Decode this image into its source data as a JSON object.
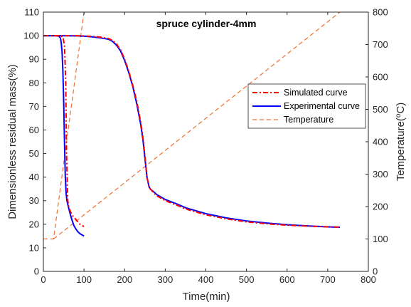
{
  "chart_data": {
    "type": "line",
    "title": "spruce cylinder-4mm",
    "xlabel": "Time(min)",
    "ylabel": "Dimensionless residual mass(%)",
    "y2label": "Temperature(°C)",
    "y2label_parts": {
      "base": "Temperature(",
      "sup": "o",
      "rest": "C)"
    },
    "xlim": [
      0,
      800
    ],
    "ylim": [
      0,
      110
    ],
    "y2lim": [
      0,
      800
    ],
    "xticks": [
      "0",
      "100",
      "200",
      "300",
      "400",
      "500",
      "600",
      "700",
      "800"
    ],
    "yticks": [
      "0",
      "10",
      "20",
      "30",
      "40",
      "50",
      "60",
      "70",
      "80",
      "90",
      "100",
      "110"
    ],
    "y2ticks": [
      "0",
      "100",
      "200",
      "300",
      "400",
      "500",
      "600",
      "700",
      "800"
    ],
    "grid": false,
    "legend_position": "center-right",
    "series": [
      {
        "name": "Simulated curve",
        "color": "#ff0000",
        "style": "dash-dot",
        "axis": "left",
        "segments": [
          {
            "x": [
              0,
              40,
              48,
              52,
              55,
              57,
              60,
              63,
              70,
              80,
              90,
              100
            ],
            "y": [
              100,
              100,
              99.5,
              96,
              80,
              50,
              30,
              27,
              24,
              22,
              20,
              19
            ]
          },
          {
            "x": [
              0,
              40,
              80,
              100,
              120,
              140,
              160,
              170,
              180,
              190,
              200,
              210,
              220,
              230,
              240,
              245,
              250,
              255,
              260,
              263,
              266,
              270,
              280,
              300,
              330,
              350,
              400,
              450,
              500,
              550,
              600,
              650,
              700,
              730
            ],
            "y": [
              100,
              100,
              100,
              99.9,
              99.7,
              99.4,
              98.8,
              98,
              96.5,
              94,
              90,
              85,
              79,
              72,
              63,
              57,
              49,
              40,
              36,
              35,
              34.5,
              33.5,
              32,
              30,
              28,
              26.5,
              24,
              22.3,
              21,
              20.2,
              19.6,
              19.2,
              18.9,
              18.8
            ]
          }
        ]
      },
      {
        "name": "Experimental curve",
        "color": "#0000ff",
        "style": "solid",
        "axis": "left",
        "segments": [
          {
            "x": [
              0,
              30,
              38,
              42,
              44,
              46,
              48,
              50,
              52,
              54,
              56,
              58,
              60,
              65,
              70,
              75,
              80,
              85,
              90,
              95,
              100
            ],
            "y": [
              100,
              100,
              99.8,
              99,
              97,
              93,
              85,
              72,
              55,
              40,
              33,
              30,
              28.5,
              25,
              22,
              19.5,
              18,
              16.8,
              16,
              15.5,
              15
            ]
          },
          {
            "x": [
              0,
              40,
              80,
              100,
              120,
              140,
              160,
              170,
              180,
              190,
              200,
              210,
              220,
              230,
              240,
              245,
              250,
              255,
              260,
              263,
              266,
              270,
              280,
              300,
              330,
              350,
              400,
              450,
              500,
              550,
              600,
              650,
              700,
              730
            ],
            "y": [
              100,
              100,
              99.9,
              99.8,
              99.5,
              99.1,
              98.5,
              97.6,
              96,
              93.5,
              89.5,
              84.5,
              78.5,
              71,
              62,
              56,
              48,
              40,
              36,
              35,
              34.5,
              34,
              32.5,
              30.5,
              28.5,
              27,
              24.5,
              22.7,
              21.4,
              20.5,
              19.8,
              19.3,
              18.9,
              18.7
            ]
          }
        ]
      },
      {
        "name": "Temperature",
        "color": "#f07030",
        "style": "dashed",
        "axis": "right",
        "segments": [
          {
            "x": [
              0,
              25,
              100
            ],
            "y": [
              100,
              100,
              800
            ]
          },
          {
            "x": [
              25,
              730
            ],
            "y": [
              100,
              800
            ]
          }
        ]
      }
    ]
  }
}
